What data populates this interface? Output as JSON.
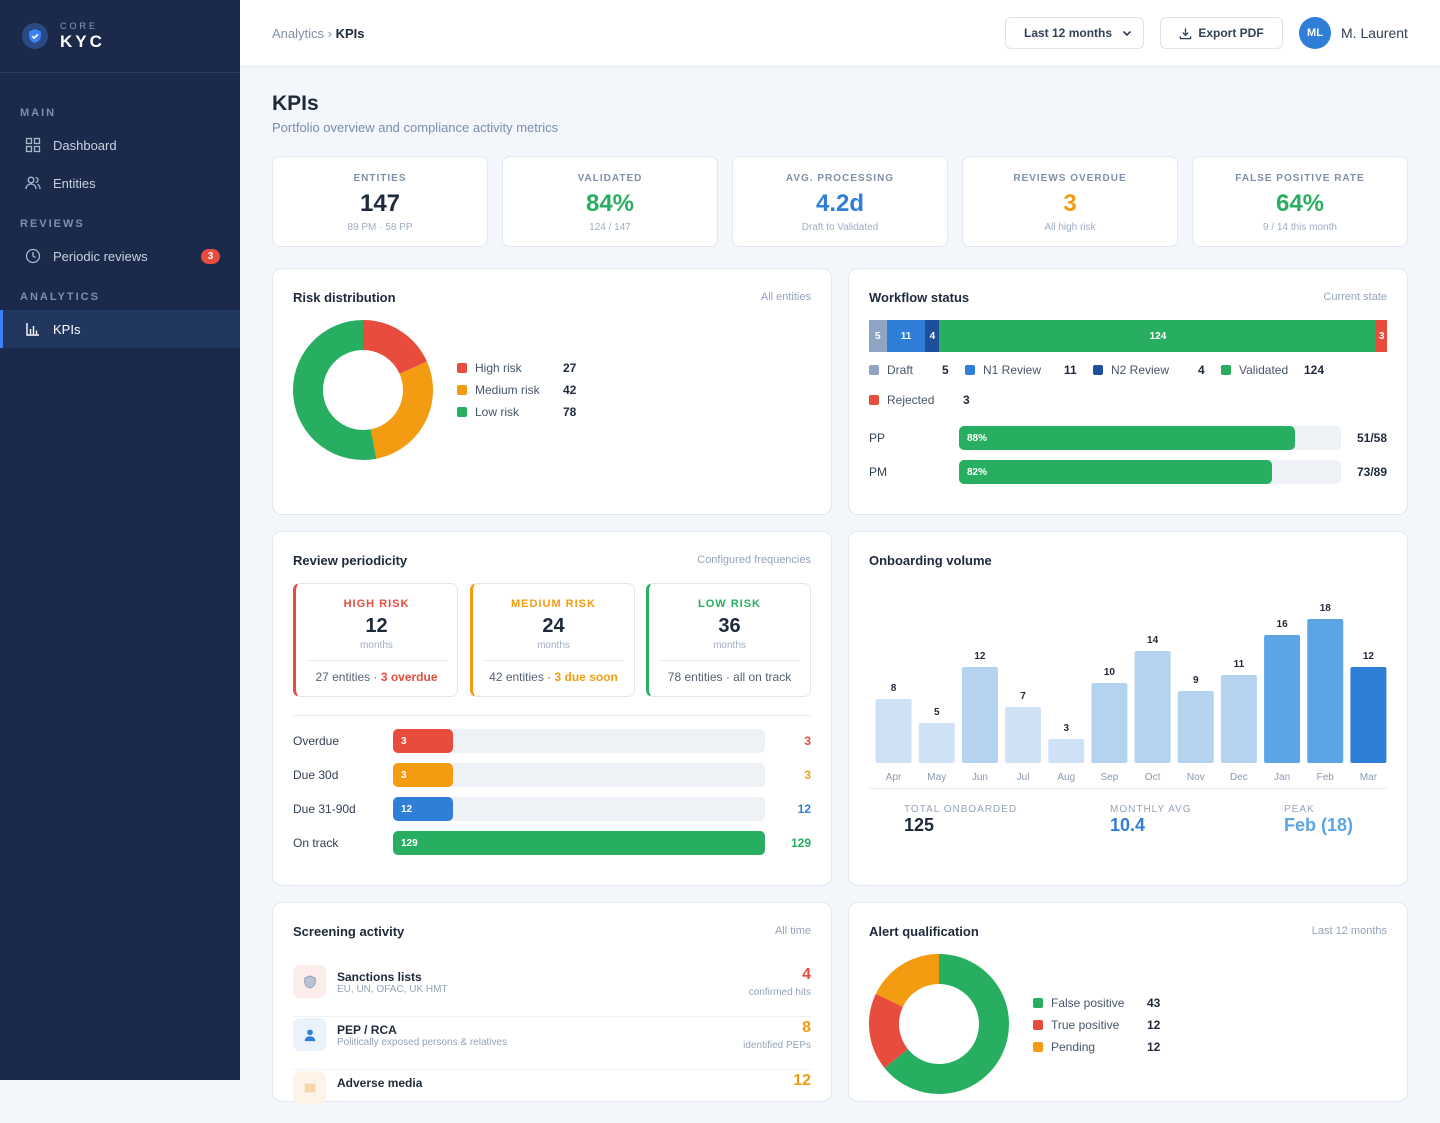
{
  "brand": {
    "top": "CORE",
    "main": "KYC"
  },
  "sidebar": {
    "sections": [
      {
        "label": "MAIN"
      },
      {
        "label": "REVIEWS"
      },
      {
        "label": "ANALYTICS"
      }
    ],
    "items": [
      {
        "label": "Dashboard",
        "icon": "grid-icon"
      },
      {
        "label": "Entities",
        "icon": "users-icon"
      },
      {
        "label": "Periodic reviews",
        "icon": "clock-icon",
        "badge": "3"
      },
      {
        "label": "KPIs",
        "icon": "bar-chart-icon",
        "active": true
      }
    ]
  },
  "header": {
    "breadcrumb_parent": "Analytics",
    "breadcrumb_sep": " › ",
    "breadcrumb_current": "KPIs",
    "period": "Last 12 months",
    "export_label": "Export PDF",
    "avatar_initials": "ML",
    "user_name": "M. Laurent"
  },
  "page": {
    "title": "KPIs",
    "subtitle": "Portfolio overview and compliance activity metrics"
  },
  "kpis": [
    {
      "label": "ENTITIES",
      "value": "147",
      "sub": "89 PM · 58 PP",
      "color": "#1e293b"
    },
    {
      "label": "VALIDATED",
      "value": "84%",
      "sub": "124 / 147",
      "color": "#27ae60"
    },
    {
      "label": "AVG. PROCESSING",
      "value": "4.2d",
      "sub": "Draft to Validated",
      "color": "#2f7ed8"
    },
    {
      "label": "REVIEWS OVERDUE",
      "value": "3",
      "sub": "All high risk",
      "color": "#f39c12"
    },
    {
      "label": "FALSE POSITIVE RATE",
      "value": "64%",
      "sub": "9 / 14 this month",
      "color": "#27ae60"
    }
  ],
  "risk": {
    "title": "Risk distribution",
    "meta": "All entities",
    "items": [
      {
        "label": "High risk",
        "value": 27,
        "color": "#e74c3c"
      },
      {
        "label": "Medium risk",
        "value": 42,
        "color": "#f39c12"
      },
      {
        "label": "Low risk",
        "value": 78,
        "color": "#27ae60"
      }
    ]
  },
  "workflow": {
    "title": "Workflow status",
    "meta": "Current state",
    "segments": [
      {
        "label": "Draft",
        "value": 5,
        "color": "#8fa3c4"
      },
      {
        "label": "N1 Review",
        "value": 11,
        "color": "#2f7ed8"
      },
      {
        "label": "N2 Review",
        "value": 4,
        "color": "#1f4f9c"
      },
      {
        "label": "Validated",
        "value": 124,
        "color": "#27ae60"
      },
      {
        "label": "Rejected",
        "value": 3,
        "color": "#e74c3c"
      }
    ],
    "types": [
      {
        "label": "PP",
        "percent": 88,
        "pct_text": "88%",
        "count": "51/58"
      },
      {
        "label": "PM",
        "percent": 82,
        "pct_text": "82%",
        "count": "73/89"
      }
    ]
  },
  "periodicity": {
    "title": "Review periodicity",
    "meta": "Configured frequencies",
    "boxes": [
      {
        "label": "HIGH RISK",
        "value": "12",
        "unit": "months",
        "entities": "27 entities · ",
        "status": "3 overdue",
        "color": "#e74c3c"
      },
      {
        "label": "MEDIUM RISK",
        "value": "24",
        "unit": "months",
        "entities": "42 entities · ",
        "status": "3 due soon",
        "color": "#f39c12"
      },
      {
        "label": "LOW RISK",
        "value": "36",
        "unit": "months",
        "entities": "78 entities · ",
        "status": "all on track",
        "color": "#27ae60"
      }
    ],
    "rows": [
      {
        "label": "Overdue",
        "value": 3,
        "text": "3",
        "color": "#e74c3c"
      },
      {
        "label": "Due 30d",
        "value": 3,
        "text": "3",
        "color": "#f39c12"
      },
      {
        "label": "Due 31-90d",
        "value": 12,
        "text": "12",
        "color": "#2f7ed8"
      },
      {
        "label": "On track",
        "value": 129,
        "text": "129",
        "color": "#27ae60"
      }
    ]
  },
  "onboarding": {
    "title": "Onboarding volume",
    "months": [
      "Apr",
      "May",
      "Jun",
      "Jul",
      "Aug",
      "Sep",
      "Oct",
      "Nov",
      "Dec",
      "Jan",
      "Feb",
      "Mar"
    ],
    "values": [
      8,
      5,
      12,
      7,
      3,
      10,
      14,
      9,
      11,
      16,
      18,
      12
    ],
    "stats": [
      {
        "label": "TOTAL ONBOARDED",
        "value": "125",
        "color": "#1e293b"
      },
      {
        "label": "MONTHLY AVG",
        "value": "10.4",
        "color": "#2f7ed8"
      },
      {
        "label": "PEAK",
        "value": "Feb (18)",
        "color": "#5ba4e6"
      }
    ]
  },
  "chart_data": {
    "type": "bar",
    "categories": [
      "Apr",
      "May",
      "Jun",
      "Jul",
      "Aug",
      "Sep",
      "Oct",
      "Nov",
      "Dec",
      "Jan",
      "Feb",
      "Mar"
    ],
    "values": [
      8,
      5,
      12,
      7,
      3,
      10,
      14,
      9,
      11,
      16,
      18,
      12
    ],
    "title": "Onboarding volume",
    "xlabel": "",
    "ylabel": "",
    "ylim": [
      0,
      18
    ],
    "grid": false
  },
  "screening": {
    "title": "Screening activity",
    "meta": "All time",
    "items": [
      {
        "name": "Sanctions lists",
        "desc": "EU, UN, OFAC, UK HMT",
        "count": "4",
        "caption": "confirmed hits",
        "color": "#e74c3c",
        "icon": "shield-icon"
      },
      {
        "name": "PEP / RCA",
        "desc": "Politically exposed persons & relatives",
        "count": "8",
        "caption": "identified PEPs",
        "color": "#f39c12",
        "icon": "person-icon"
      },
      {
        "name": "Adverse media",
        "desc": "",
        "count": "12",
        "caption": "",
        "color": "#f39c12",
        "icon": "newspaper-icon"
      }
    ]
  },
  "alerts": {
    "title": "Alert qualification",
    "meta": "Last 12 months",
    "items": [
      {
        "label": "False positive",
        "value": 43,
        "color": "#27ae60"
      },
      {
        "label": "True positive",
        "value": 12,
        "color": "#e74c3c"
      },
      {
        "label": "Pending",
        "value": 12,
        "color": "#f39c12"
      }
    ]
  }
}
